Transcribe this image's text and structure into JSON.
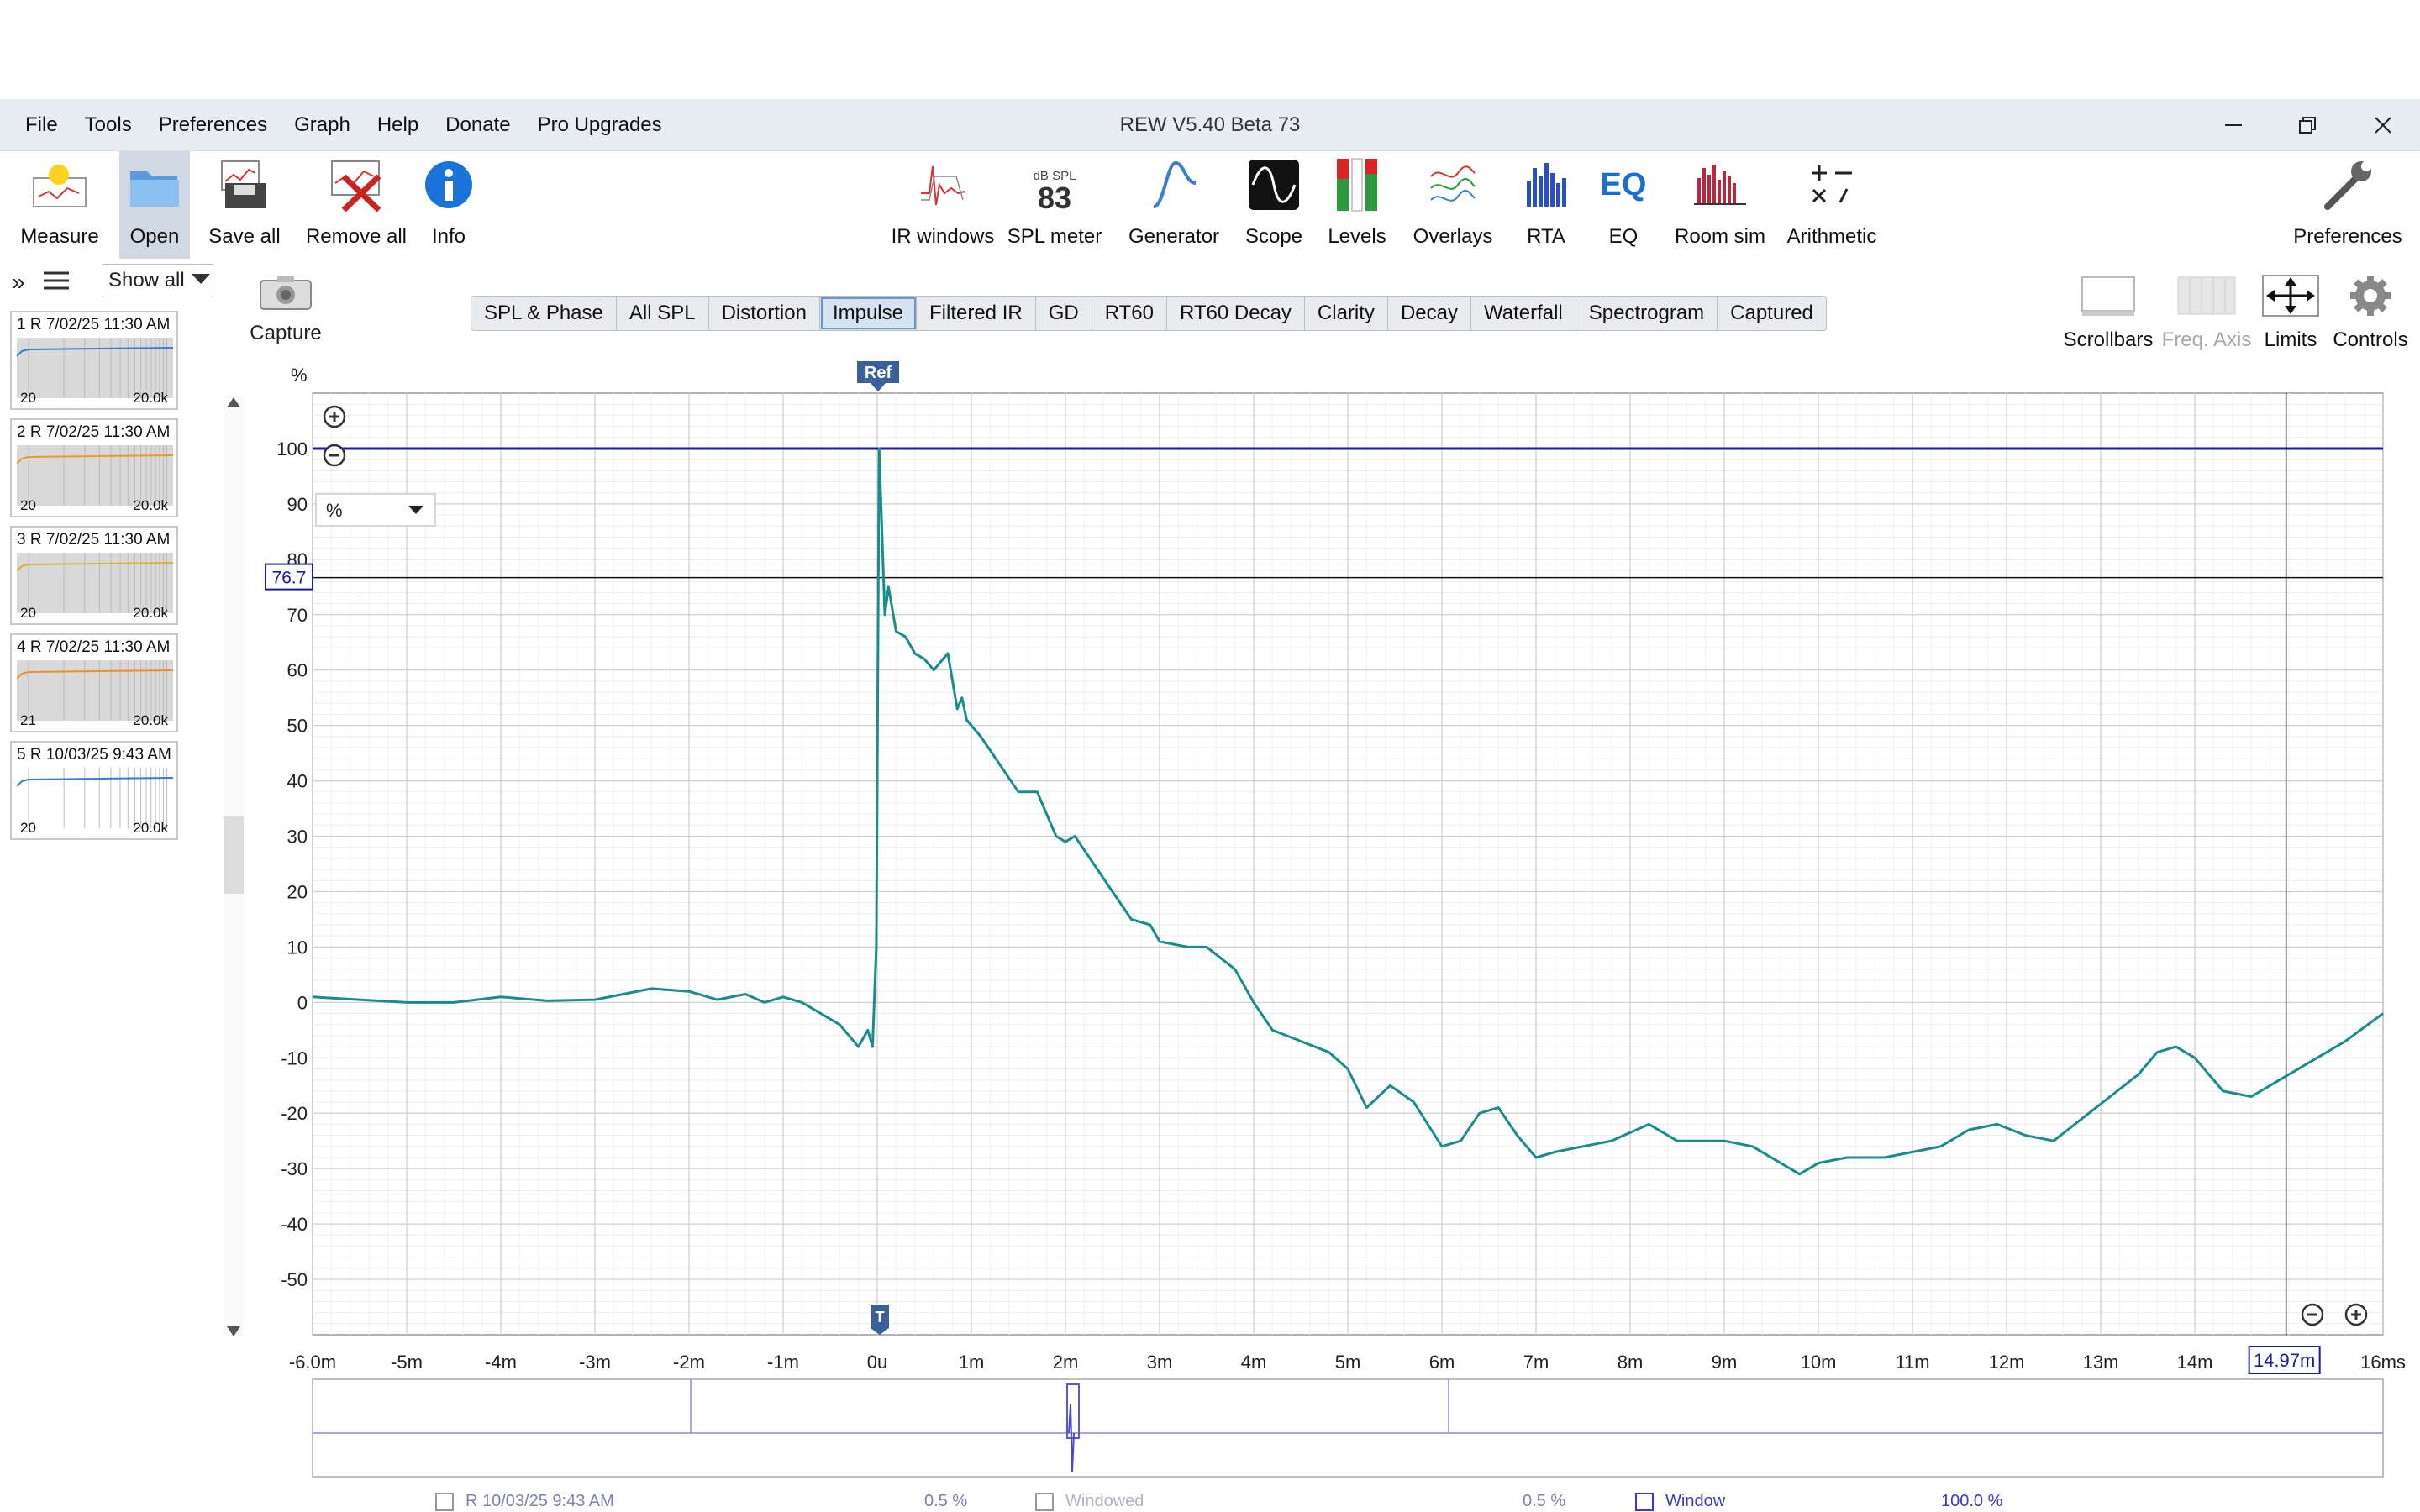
{
  "app": {
    "title": "REW V5.40 Beta 73"
  },
  "menu": [
    "File",
    "Tools",
    "Preferences",
    "Graph",
    "Help",
    "Donate",
    "Pro Upgrades"
  ],
  "window_controls": [
    "minimize-icon",
    "restore-icon",
    "close-icon"
  ],
  "toolbar": {
    "left": [
      {
        "label": "Measure",
        "icon": "measure-icon"
      },
      {
        "label": "Open",
        "icon": "folder-icon",
        "active": true
      },
      {
        "label": "Save all",
        "icon": "save-icon"
      },
      {
        "label": "Remove all",
        "icon": "remove-icon"
      },
      {
        "label": "Info",
        "icon": "info-icon"
      }
    ],
    "center": [
      {
        "label": "IR windows",
        "icon": "ir-windows-icon"
      },
      {
        "label": "SPL meter",
        "icon": "spl-meter-icon"
      },
      {
        "label": "Generator",
        "icon": "generator-icon"
      },
      {
        "label": "Scope",
        "icon": "scope-icon"
      },
      {
        "label": "Levels",
        "icon": "levels-icon"
      },
      {
        "label": "Overlays",
        "icon": "overlays-icon"
      },
      {
        "label": "RTA",
        "icon": "rta-icon"
      },
      {
        "label": "EQ",
        "icon": "eq-icon"
      },
      {
        "label": "Room sim",
        "icon": "room-sim-icon"
      },
      {
        "label": "Arithmetic",
        "icon": "arithmetic-icon"
      }
    ],
    "spl_meter_unit": "dB SPL",
    "spl_meter_value": "83",
    "preferences": "Preferences"
  },
  "sidebar": {
    "filter": "Show all",
    "measurements": [
      {
        "header": "1 R 7/02/25 11:30 AM",
        "lo": "20",
        "hi": "20.0k",
        "trace_color": "#3b7bd6"
      },
      {
        "header": "2 R 7/02/25 11:30 AM",
        "lo": "20",
        "hi": "20.0k",
        "trace_color": "#e89a2a"
      },
      {
        "header": "3 R 7/02/25 11:30 AM",
        "lo": "20",
        "hi": "20.0k",
        "trace_color": "#e0b030"
      },
      {
        "header": "4 R 7/02/25 11:30 AM",
        "lo": "21",
        "hi": "20.0k",
        "trace_color": "#e8902a"
      },
      {
        "header": "5 R 10/03/25 9:43 AM",
        "lo": "20",
        "hi": "20.0k",
        "trace_color": "#3b7bd6"
      }
    ]
  },
  "capture": {
    "label": "Capture"
  },
  "tabs": {
    "items": [
      "SPL & Phase",
      "All SPL",
      "Distortion",
      "Impulse",
      "Filtered IR",
      "GD",
      "RT60",
      "RT60 Decay",
      "Clarity",
      "Decay",
      "Waterfall",
      "Spectrogram",
      "Captured"
    ],
    "selected": "Impulse"
  },
  "right_tools": [
    {
      "label": "Scrollbars",
      "icon": "scrollbars-icon",
      "enabled": true
    },
    {
      "label": "Freq. Axis",
      "icon": "freq-axis-icon",
      "enabled": false
    },
    {
      "label": "Limits",
      "icon": "limits-icon",
      "enabled": true
    },
    {
      "label": "Controls",
      "icon": "gear-icon",
      "enabled": true
    }
  ],
  "graph": {
    "y_unit": "%",
    "unit_select": "%",
    "ref_marker": "Ref",
    "t_marker": "T",
    "cursor_y_label": "76.7",
    "cursor_x_label": "14.97m"
  },
  "chart_data": {
    "type": "line",
    "title": "",
    "xlabel": "",
    "ylabel": "%",
    "x_unit": "ms",
    "xlim": [
      -6.0,
      16
    ],
    "ylim": [
      -60,
      110
    ],
    "x_ticks": [
      "-6.0m",
      "-5m",
      "-4m",
      "-3m",
      "-2m",
      "-1m",
      "0u",
      "1m",
      "2m",
      "3m",
      "4m",
      "5m",
      "6m",
      "7m",
      "8m",
      "9m",
      "10m",
      "11m",
      "12m",
      "13m",
      "14m",
      "16ms"
    ],
    "y_ticks": [
      100,
      90,
      80,
      70,
      60,
      50,
      40,
      30,
      20,
      10,
      0,
      -10,
      -20,
      -30,
      -40,
      -50
    ],
    "reference_line_y": 100,
    "cursor": {
      "x": 14.97,
      "y": 76.7
    },
    "series": [
      {
        "color": "#1a8c8c",
        "x": [
          -6.0,
          -5.5,
          -5.0,
          -4.5,
          -4.0,
          -3.5,
          -3.0,
          -2.7,
          -2.4,
          -2.0,
          -1.7,
          -1.4,
          -1.2,
          -1.0,
          -0.8,
          -0.6,
          -0.4,
          -0.3,
          -0.2,
          -0.1,
          -0.05,
          -0.01,
          0.02,
          0.05,
          0.08,
          0.12,
          0.2,
          0.3,
          0.4,
          0.5,
          0.6,
          0.75,
          0.85,
          0.9,
          0.95,
          1.1,
          1.3,
          1.5,
          1.7,
          1.9,
          2.0,
          2.1,
          2.3,
          2.5,
          2.7,
          2.9,
          3.0,
          3.3,
          3.5,
          3.8,
          4.0,
          4.2,
          4.5,
          4.8,
          5.0,
          5.2,
          5.45,
          5.7,
          6.0,
          6.2,
          6.4,
          6.6,
          6.8,
          7.0,
          7.2,
          7.5,
          7.8,
          8.2,
          8.5,
          9.0,
          9.3,
          9.6,
          9.8,
          10.0,
          10.3,
          10.7,
          11.0,
          11.3,
          11.6,
          11.9,
          12.2,
          12.5,
          12.8,
          13.1,
          13.4,
          13.6,
          13.8,
          14.0,
          14.3,
          14.6,
          14.9,
          15.3,
          15.6,
          16.0
        ],
        "y": [
          1,
          0.5,
          0,
          0,
          1,
          0.3,
          0.5,
          1.5,
          2.5,
          2,
          0.5,
          1.5,
          0,
          1,
          0,
          -2,
          -4,
          -6,
          -8,
          -5,
          -8,
          10,
          100,
          85,
          70,
          75,
          67,
          66,
          63,
          62,
          60,
          63,
          53,
          55,
          51,
          48,
          43,
          38,
          38,
          30,
          29,
          30,
          25,
          20,
          15,
          14,
          11,
          10,
          10,
          6,
          0,
          -5,
          -7,
          -9,
          -12,
          -19,
          -15,
          -18,
          -26,
          -25,
          -20,
          -19,
          -24,
          -28,
          -27,
          -26,
          -25,
          -22,
          -25,
          -25,
          -26,
          -29,
          -31,
          -29,
          -28,
          -28,
          -27,
          -26,
          -23,
          -22,
          -24,
          -25,
          -21,
          -17,
          -13,
          -9,
          -8,
          -10,
          -16,
          -17,
          -14,
          -10,
          -7,
          -2
        ]
      }
    ]
  },
  "overview": {
    "legend": [
      {
        "label": "R 10/03/25 9:43 AM",
        "value": "0.5 %"
      },
      {
        "label": "Windowed",
        "value": "0.5 %"
      },
      {
        "label": "Window",
        "value": "100.0 %",
        "checked": true
      }
    ]
  }
}
